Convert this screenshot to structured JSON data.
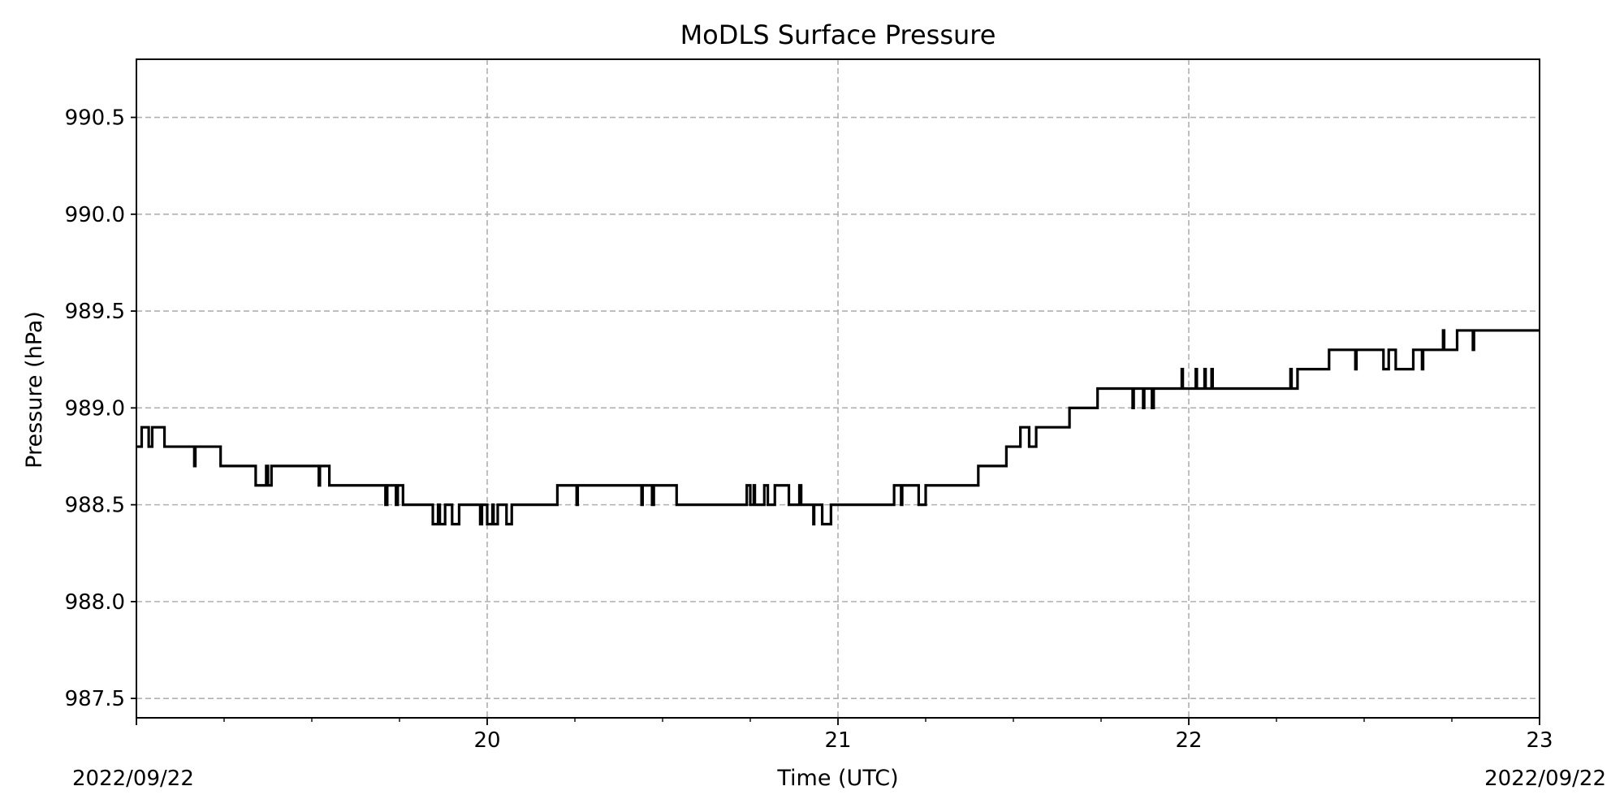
{
  "chart_data": {
    "type": "line",
    "title": "MoDLS Surface Pressure",
    "xlabel": "Time (UTC)",
    "ylabel": "Pressure (hPa)",
    "x_unit": "hour UTC",
    "xlim": [
      19.0,
      23.0
    ],
    "ylim": [
      987.4,
      990.8
    ],
    "grid": true,
    "step": "post",
    "x_ticks": [
      {
        "value": 20,
        "label": "20"
      },
      {
        "value": 21,
        "label": "21"
      },
      {
        "value": 22,
        "label": "22"
      },
      {
        "value": 23,
        "label": "23"
      }
    ],
    "x_minor_ticks": [
      19.25,
      19.5,
      19.75,
      20.25,
      20.5,
      20.75,
      21.25,
      21.5,
      21.75,
      22.25,
      22.5,
      22.75
    ],
    "y_ticks": [
      {
        "value": 987.5,
        "label": "987.5"
      },
      {
        "value": 988.0,
        "label": "988.0"
      },
      {
        "value": 988.5,
        "label": "988.5"
      },
      {
        "value": 989.0,
        "label": "989.0"
      },
      {
        "value": 989.5,
        "label": "989.5"
      },
      {
        "value": 990.0,
        "label": "990.0"
      },
      {
        "value": 990.5,
        "label": "990.5"
      }
    ],
    "date_left": "2022/09/22",
    "date_right": "2022/09/22",
    "series": [
      {
        "x": [
          19.0,
          19.015,
          19.035,
          19.045,
          19.08,
          19.165,
          19.168,
          19.24,
          19.34,
          19.37,
          19.375,
          19.385,
          19.39,
          19.52,
          19.523,
          19.55,
          19.71,
          19.715,
          19.74,
          19.745,
          19.75,
          19.76,
          19.845,
          19.86,
          19.865,
          19.88,
          19.9,
          19.92,
          19.98,
          19.985,
          20.0,
          20.015,
          20.018,
          20.03,
          20.055,
          20.07,
          20.2,
          20.255,
          20.258,
          20.27,
          20.44,
          20.443,
          20.47,
          20.475,
          20.48,
          20.54,
          20.74,
          20.75,
          20.76,
          20.763,
          20.79,
          20.8,
          20.82,
          20.86,
          20.89,
          20.895,
          20.93,
          20.932,
          20.955,
          20.96,
          20.98,
          21.16,
          21.18,
          21.183,
          21.23,
          21.25,
          21.39,
          21.4,
          21.48,
          21.52,
          21.545,
          21.565,
          21.66,
          21.74,
          21.84,
          21.843,
          21.87,
          21.873,
          21.895,
          21.9,
          21.98,
          21.983,
          22.02,
          22.023,
          22.045,
          22.048,
          22.065,
          22.068,
          22.29,
          22.293,
          22.31,
          22.4,
          22.475,
          22.478,
          22.555,
          22.57,
          22.59,
          22.64,
          22.665,
          22.668,
          22.725,
          22.728,
          22.765,
          22.81,
          22.813,
          23.0
        ],
        "values": [
          988.8,
          988.9,
          988.8,
          988.9,
          988.8,
          988.7,
          988.8,
          988.7,
          988.6,
          988.7,
          988.6,
          988.7,
          988.7,
          988.6,
          988.7,
          988.6,
          988.5,
          988.6,
          988.5,
          988.6,
          988.6,
          988.5,
          988.4,
          988.5,
          988.4,
          988.5,
          988.4,
          988.5,
          988.4,
          988.5,
          988.4,
          988.5,
          988.4,
          988.5,
          988.4,
          988.5,
          988.6,
          988.5,
          988.6,
          988.6,
          988.5,
          988.6,
          988.5,
          988.6,
          988.6,
          988.5,
          988.6,
          988.5,
          988.6,
          988.5,
          988.6,
          988.5,
          988.6,
          988.5,
          988.6,
          988.5,
          988.4,
          988.5,
          988.4,
          988.4,
          988.5,
          988.6,
          988.5,
          988.6,
          988.5,
          988.6,
          988.6,
          988.7,
          988.8,
          988.9,
          988.8,
          988.9,
          989.0,
          989.1,
          989.0,
          989.1,
          989.0,
          989.1,
          989.0,
          989.1,
          989.2,
          989.1,
          989.2,
          989.1,
          989.2,
          989.1,
          989.2,
          989.1,
          989.2,
          989.1,
          989.2,
          989.3,
          989.2,
          989.3,
          989.2,
          989.3,
          989.2,
          989.3,
          989.2,
          989.3,
          989.4,
          989.3,
          989.4,
          989.3,
          989.4,
          989.4
        ]
      }
    ]
  }
}
